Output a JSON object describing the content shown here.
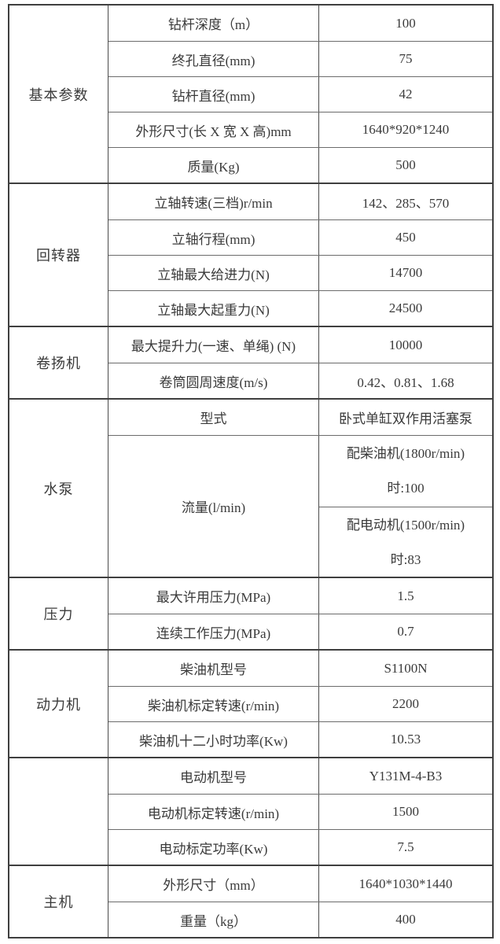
{
  "table": {
    "sections": [
      {
        "category": "基本参数",
        "rows": [
          {
            "label": "钻杆深度（m）",
            "value": "100"
          },
          {
            "label": "终孔直径(mm)",
            "value": "75"
          },
          {
            "label": "钻杆直径(mm)",
            "value": "42"
          },
          {
            "label": "外形尺寸(长 X 宽 X 高)mm",
            "value": "1640*920*1240"
          },
          {
            "label": "质量(Kg)",
            "value": "500"
          }
        ]
      },
      {
        "category": "回转器",
        "rows": [
          {
            "label": "立轴转速(三档)r/min",
            "value": "142、285、570"
          },
          {
            "label": "立轴行程(mm)",
            "value": "450"
          },
          {
            "label": "立轴最大给进力(N)",
            "value": "14700"
          },
          {
            "label": "立轴最大起重力(N)",
            "value": "24500"
          }
        ]
      },
      {
        "category": "卷扬机",
        "rows": [
          {
            "label": "最大提升力(一速、单绳) (N)",
            "value": "10000"
          },
          {
            "label": "卷筒圆周速度(m/s)",
            "value": "0.42、0.81、1.68"
          }
        ]
      },
      {
        "category": "水泵",
        "rows": [
          {
            "label": "型式",
            "value": "卧式单缸双作用活塞泵"
          }
        ],
        "flow": {
          "label": "流量(l/min)",
          "values": [
            "配柴油机(1800r/min)\n时:100",
            "配电动机(1500r/min)\n时:83"
          ]
        }
      },
      {
        "category": "压力",
        "rows": [
          {
            "label": "最大许用压力(MPa)",
            "value": "1.5"
          },
          {
            "label": "连续工作压力(MPa)",
            "value": "0.7"
          }
        ]
      },
      {
        "category": "动力机",
        "rows": [
          {
            "label": "柴油机型号",
            "value": "S1100N"
          },
          {
            "label": "柴油机标定转速(r/min)",
            "value": "2200"
          },
          {
            "label": "柴油机十二小时功率(Kw)",
            "value": "10.53"
          }
        ]
      },
      {
        "category": "",
        "rows": [
          {
            "label": "电动机型号",
            "value": "Y131M-4-B3"
          },
          {
            "label": "电动机标定转速(r/min)",
            "value": "1500"
          },
          {
            "label": "电动标定功率(Kw)",
            "value": "7.5"
          }
        ]
      },
      {
        "category": "主机",
        "rows": [
          {
            "label": "外形尺寸（mm）",
            "value": "1640*1030*1440"
          },
          {
            "label": "重量（kg）",
            "value": "400"
          }
        ]
      }
    ]
  }
}
